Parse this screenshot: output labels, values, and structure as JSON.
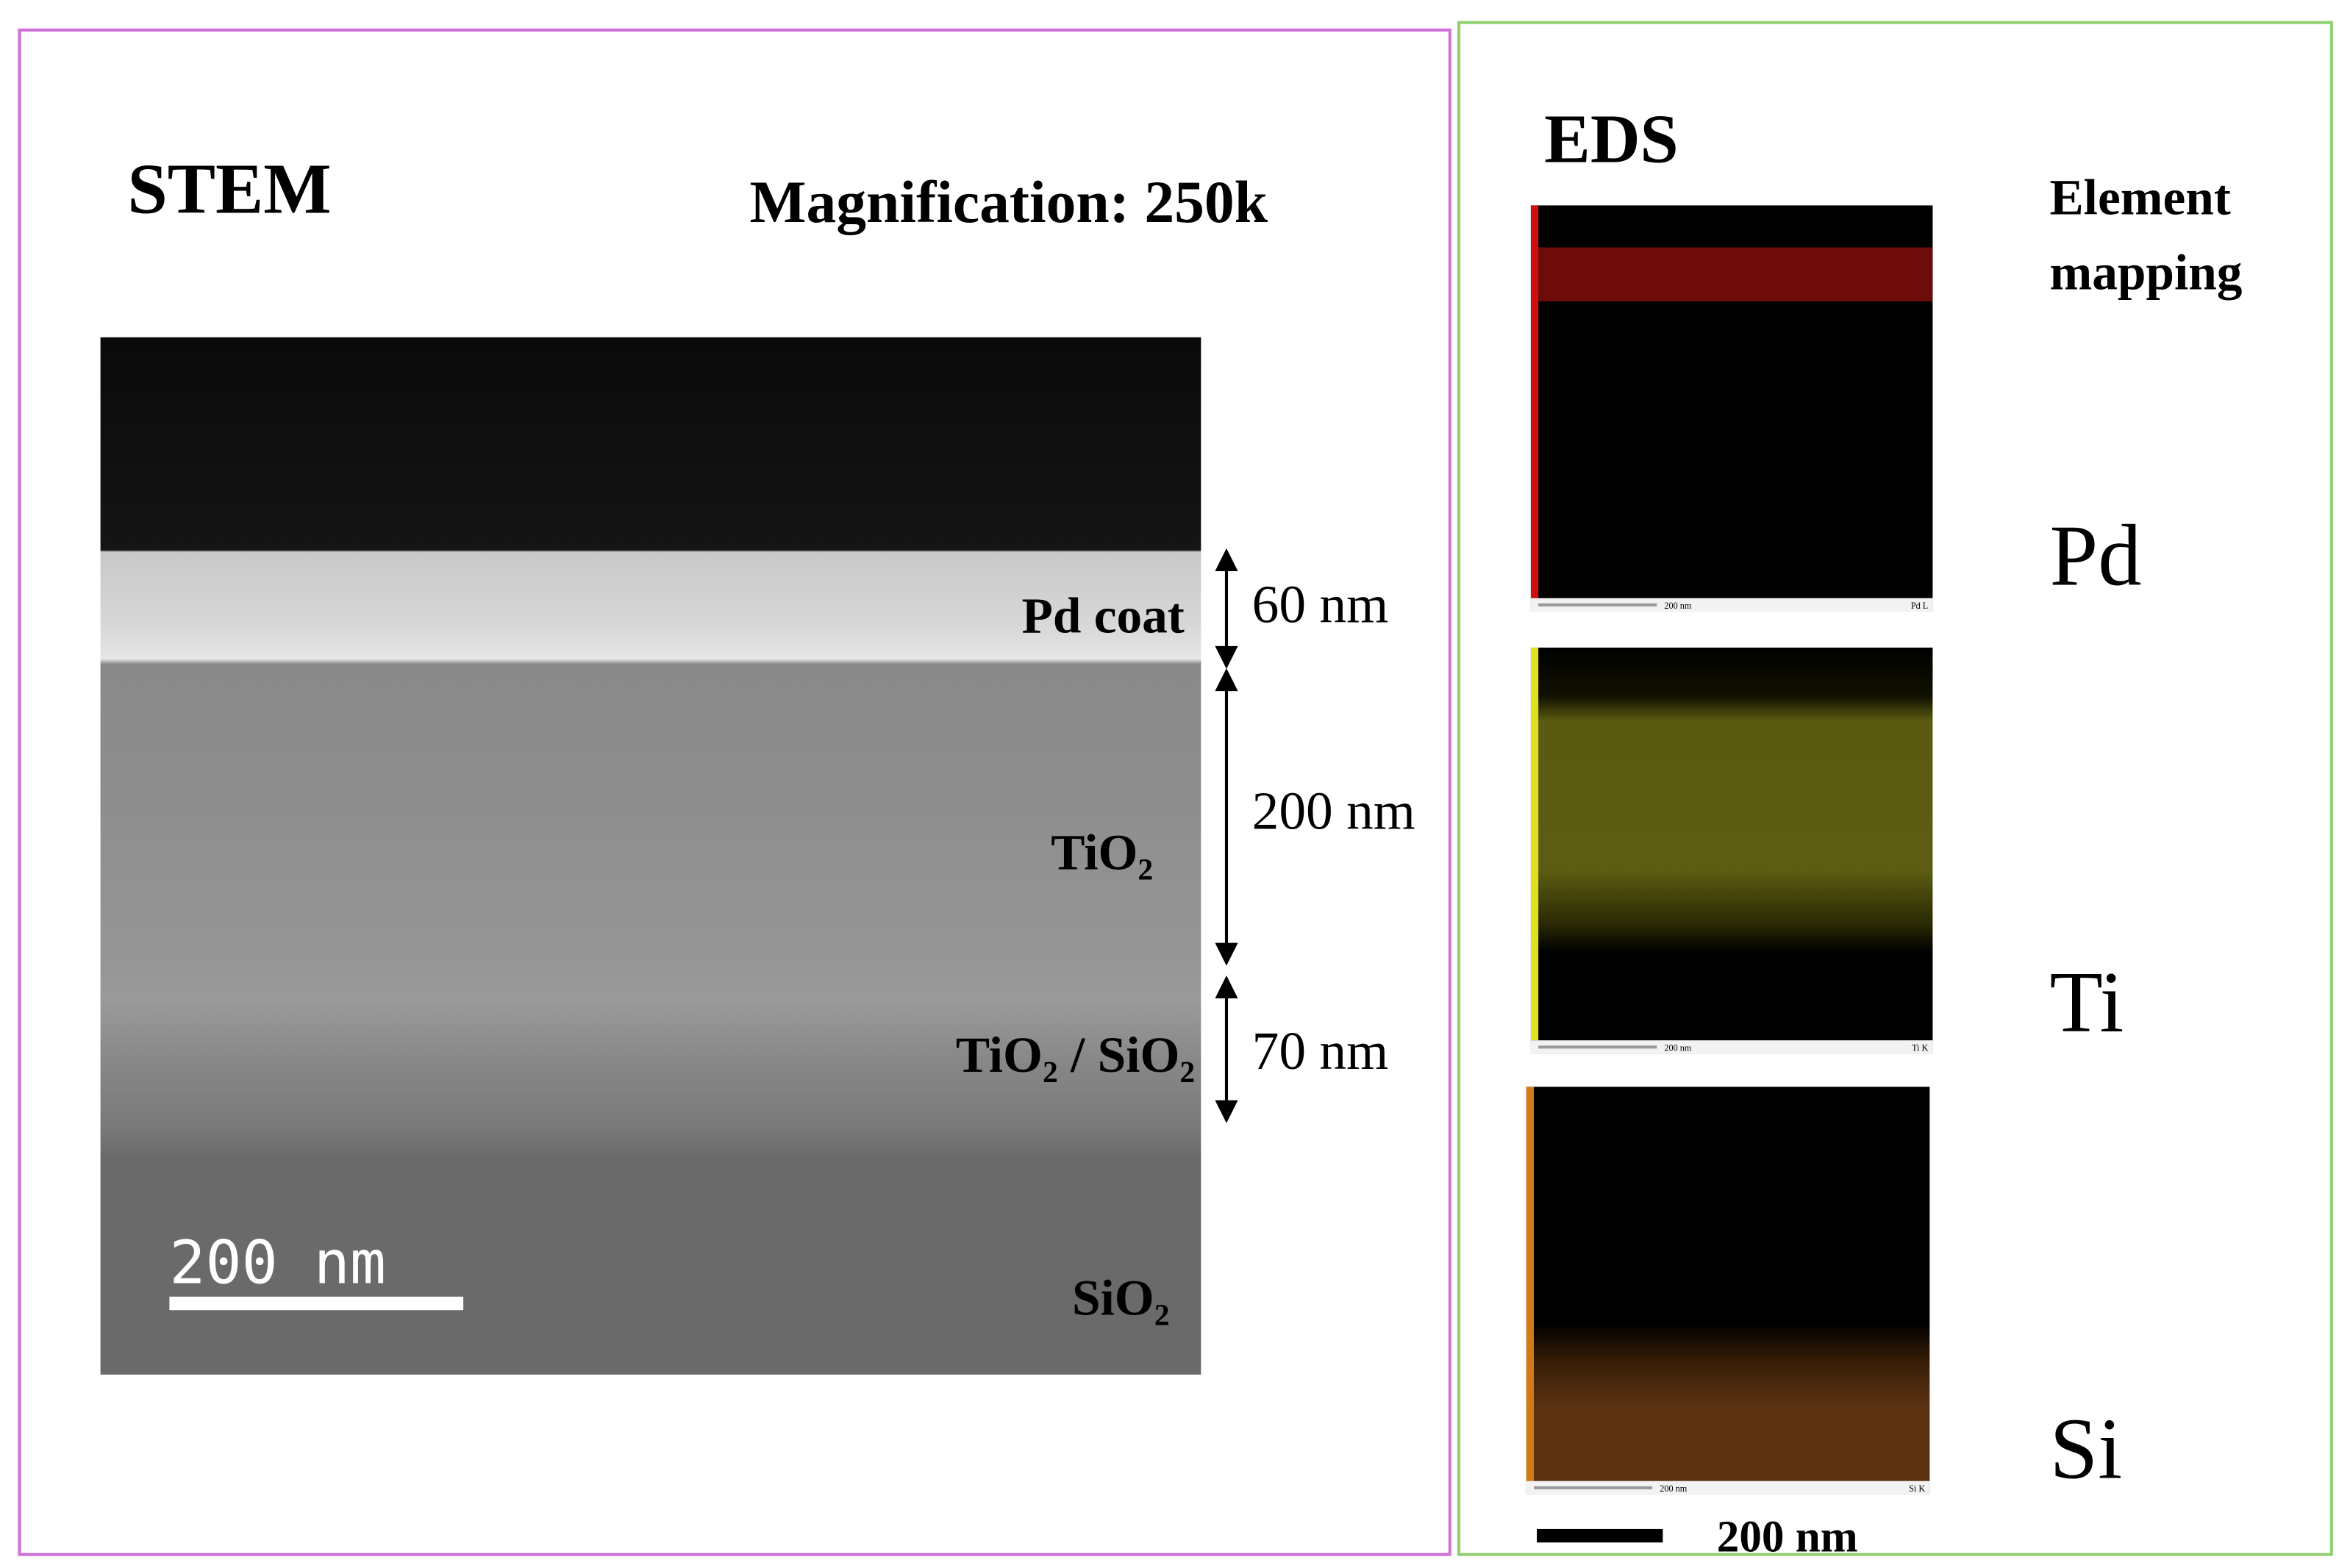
{
  "stem": {
    "title": "STEM",
    "magnification": "Magnification: 250k",
    "layers": [
      {
        "label": "Pd coat",
        "thickness": "60 nm"
      },
      {
        "label": "TiO₂",
        "thickness": "200 nm"
      },
      {
        "label": "TiO₂ / SiO₂",
        "thickness": "70 nm"
      },
      {
        "label": "SiO₂"
      }
    ],
    "scale_bar": "200 nm"
  },
  "eds": {
    "title": "EDS",
    "subtitle": [
      "Element",
      "mapping"
    ],
    "maps": [
      {
        "element": "Pd",
        "line": "Pd L",
        "scale": "200 nm"
      },
      {
        "element": "Ti",
        "line": "Ti K",
        "scale": "200 nm"
      },
      {
        "element": "Si",
        "line": "Si K",
        "scale": "200 nm"
      }
    ],
    "scale_bar": "200 nm"
  }
}
